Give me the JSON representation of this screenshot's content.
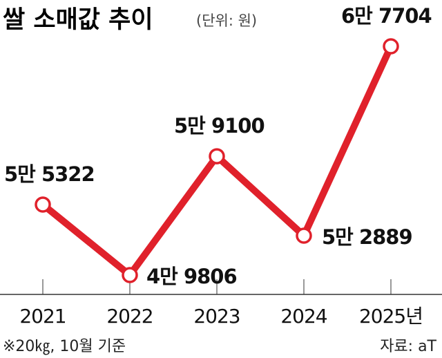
{
  "title": "쌀 소매값 추이",
  "unit": "(단위: 원)",
  "footnote": "※20㎏, 10월 기준",
  "source": "자료: aT",
  "colors": {
    "line": "#e0212b",
    "marker_fill": "#ffffff",
    "text": "#111111"
  },
  "chart_data": {
    "type": "line",
    "categories": [
      "2021",
      "2022",
      "2023",
      "2024",
      "2025년"
    ],
    "values": [
      55322,
      49806,
      59100,
      52889,
      67704
    ],
    "data_labels": [
      "5만 5322",
      "4만 9806",
      "5만 9100",
      "5만 2889",
      "6만 7704"
    ],
    "grid": false,
    "legend": "none"
  }
}
